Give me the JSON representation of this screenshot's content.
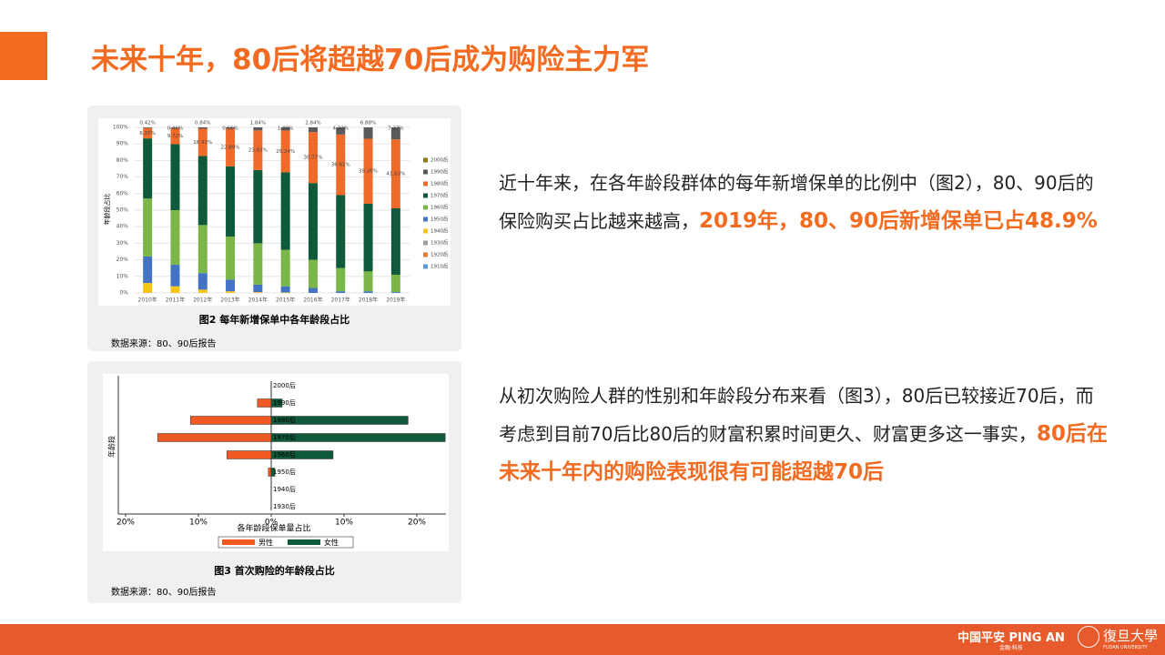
{
  "header": {
    "title": "未来十年，80后将超越70后成为购险主力军"
  },
  "chart_data": [
    {
      "type": "stacked-bar",
      "y_label": "年龄段占比",
      "caption": "图2  每年新增保单中各年龄段占比",
      "source": "数据来源：80、90后报告",
      "categories": [
        "2010年",
        "2011年",
        "2012年",
        "2013年",
        "2014年",
        "2015年",
        "2016年",
        "2017年",
        "2018年",
        "2019年"
      ],
      "ylim": [
        0,
        100
      ],
      "yticks": [
        {
          "value": 0,
          "label": "0%"
        },
        {
          "value": 10,
          "label": "10%"
        },
        {
          "value": 20,
          "label": "20%"
        },
        {
          "value": 30,
          "label": "30%"
        },
        {
          "value": 40,
          "label": "40%"
        },
        {
          "value": 50,
          "label": "50%"
        },
        {
          "value": 60,
          "label": "60%"
        },
        {
          "value": 70,
          "label": "70%"
        },
        {
          "value": 80,
          "label": "80%"
        },
        {
          "value": 90,
          "label": "90%"
        },
        {
          "value": 100,
          "label": "100%"
        }
      ],
      "series": [
        {
          "name": "2000后",
          "color": "#8c7a1e",
          "values": [
            0,
            0,
            0,
            0,
            0,
            0,
            0,
            0,
            0,
            0
          ]
        },
        {
          "name": "1990后",
          "color": "#5a5a5a",
          "values": [
            0.42,
            0.46,
            0.84,
            0.66,
            1.84,
            1.88,
            2.84,
            4.33,
            6.88,
            7.27
          ],
          "value_labels": [
            "0.42%",
            "0.46%",
            "0.84%",
            "0.66%",
            "1.84%",
            "1.88%",
            "2.84%",
            "4.33%",
            "6.88%",
            "7.27%"
          ]
        },
        {
          "name": "1980后",
          "color": "#f06a2a",
          "values": [
            6.25,
            9.72,
            16.43,
            22.89,
            23.92,
            25.24,
            30.77,
            36.61,
            39.26,
            41.63
          ],
          "value_labels": [
            "6.25%",
            "9.72%",
            "16.43%",
            "22.89%",
            "23.92%",
            "25.24%",
            "30.77%",
            "36.61%",
            "39.26%",
            "41.63%"
          ]
        },
        {
          "name": "1970后",
          "color": "#0f5a3a",
          "values": [
            36.33,
            39.82,
            41.73,
            42.45,
            44.24,
            46.88,
            46.39,
            44.06,
            40.86,
            40.1
          ]
        },
        {
          "name": "1960后",
          "color": "#7ab648",
          "values": [
            35,
            33,
            29,
            26,
            25,
            22,
            17,
            14,
            12,
            10.5
          ]
        },
        {
          "name": "1950后",
          "color": "#4472c4",
          "values": [
            16,
            13,
            10,
            7,
            4.5,
            3.7,
            3,
            1,
            1,
            0.5
          ]
        },
        {
          "name": "1940后",
          "color": "#f5c518",
          "values": [
            6,
            4,
            2,
            1,
            0.5,
            0.3,
            0,
            0,
            0,
            0
          ]
        },
        {
          "name": "1930后",
          "color": "#9e9e9e",
          "values": [
            0,
            0,
            0,
            0,
            0,
            0,
            0,
            0,
            0,
            0
          ]
        },
        {
          "name": "1920后",
          "color": "#e07b39",
          "values": [
            0,
            0,
            0,
            0,
            0,
            0,
            0,
            0,
            0,
            0
          ]
        },
        {
          "name": "1910后",
          "color": "#5b9bd5",
          "values": [
            0,
            0,
            0,
            0,
            0,
            0,
            0,
            0,
            0,
            0
          ]
        }
      ]
    },
    {
      "type": "butterfly-bar",
      "x_label": "各年龄段保单量占比",
      "y_label": "年龄段",
      "caption": "图3  首次购险的年龄段占比",
      "source": "数据来源：80、90后报告",
      "categories": [
        "2000后",
        "1990后",
        "1980后",
        "1970后",
        "1960后",
        "1950后",
        "1940后",
        "1930后"
      ],
      "xlim": [
        -20,
        24
      ],
      "xticks": [
        {
          "value": -20,
          "label": "20%"
        },
        {
          "value": -10,
          "label": "10%"
        },
        {
          "value": 0,
          "label": "0%"
        },
        {
          "value": 10,
          "label": "10%"
        },
        {
          "value": 20,
          "label": "20%"
        }
      ],
      "series": [
        {
          "name": "男性",
          "color": "#f05a22",
          "values": [
            0,
            -1.9,
            -11.1,
            -15.6,
            -6.1,
            -0.4,
            0,
            0
          ]
        },
        {
          "name": "女性",
          "color": "#0f5a3a",
          "values": [
            0,
            1.5,
            18.8,
            23.9,
            8.5,
            0.5,
            0,
            0
          ]
        }
      ]
    }
  ],
  "text": [
    {
      "plain": "近十年来，在各年龄段群体的每年新增保单的比例中（图2），80、90后的保险购买占比越来越高，",
      "highlight": "2019年，80、90后新增保单已占48.9%"
    },
    {
      "plain": "从初次购险人群的性别和年龄段分布来看（图3），80后已较接近70后，而考虑到目前70后比80后的财富积累时间更久、财富更多这一事实，",
      "highlight": "80后在未来十年内的购险表现很有可能超越70后"
    }
  ],
  "footer": {
    "brand": "中国平安 PING AN",
    "brand_sub": "金融·科技",
    "university": "復旦大學",
    "university_sub": "FUDAN UNIVERSITY"
  }
}
